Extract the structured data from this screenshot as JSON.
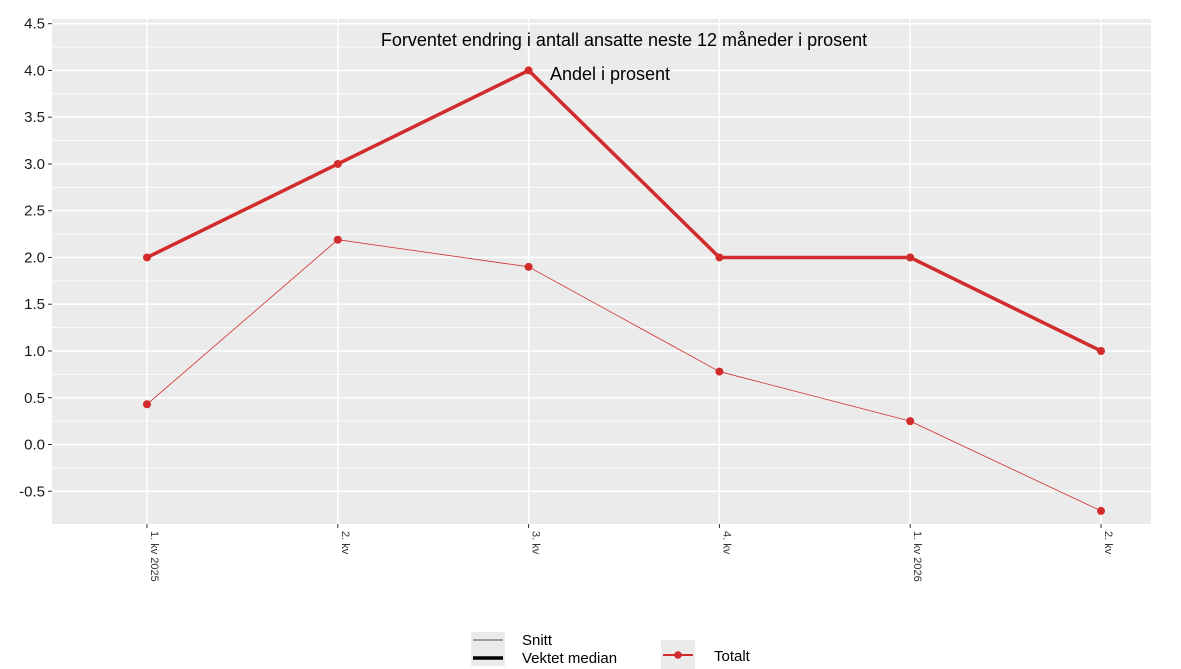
{
  "chart_data": {
    "type": "line",
    "title": "Forventet endring i antall ansatte neste 12 måneder i prosent",
    "subtitle": "Andel i prosent",
    "categories": [
      "1. kv 2025",
      "2. kv",
      "3. kv",
      "4. kv",
      "1. kv 2026",
      "2. kv"
    ],
    "yticks": [
      "4.5",
      "4.0",
      "3.5",
      "3.0",
      "2.5",
      "2.0",
      "1.5",
      "1.0",
      "0.5",
      "0.0",
      "-0.5"
    ],
    "ylim": [
      -0.85,
      4.55
    ],
    "grid": true,
    "series": [
      {
        "name": "Totalt",
        "measure": "Vektet median",
        "values": [
          2.0,
          3.0,
          4.0,
          2.0,
          2.0,
          1.0
        ]
      },
      {
        "name": "Totalt",
        "measure": "Snitt",
        "values": [
          0.43,
          2.19,
          1.9,
          0.78,
          0.25,
          -0.71
        ]
      }
    ],
    "colors": {
      "series": "#d22b2b",
      "panel": "#ebebeb",
      "grid": "#ffffff"
    },
    "legend": {
      "position": "bottom",
      "linetype_items": [
        "Snitt",
        "Vektet median"
      ],
      "color_items": [
        "Totalt"
      ]
    }
  }
}
